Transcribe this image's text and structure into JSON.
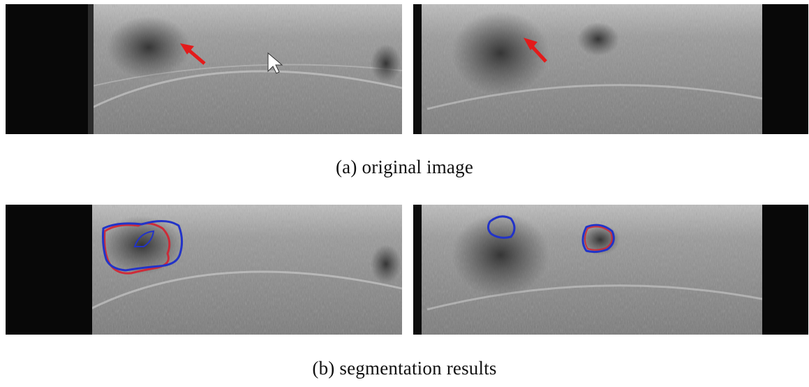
{
  "figure": {
    "captions": {
      "original": "(a) original image",
      "segmentation": "(b) segmentation results"
    },
    "colors": {
      "background": "#ffffff",
      "arrow": "#e31b1b",
      "ground_truth_contour": "#d81b2a",
      "predicted_contour": "#2233c8"
    },
    "panels": [
      {
        "row": "original",
        "view": "left",
        "annotation": "arrow-marker"
      },
      {
        "row": "original",
        "view": "right",
        "annotation": "arrow-marker"
      },
      {
        "row": "segmentation",
        "view": "left",
        "annotation": "contour-overlay"
      },
      {
        "row": "segmentation",
        "view": "right",
        "annotation": "contour-overlay"
      }
    ]
  }
}
